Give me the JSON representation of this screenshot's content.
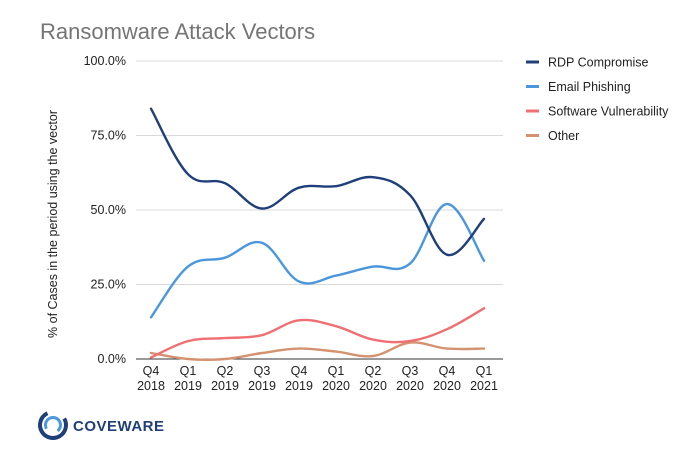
{
  "chart_data": {
    "type": "line",
    "title": "Ransomware Attack Vectors",
    "xlabel": "",
    "ylabel": "% of Cases in the period using the vector",
    "ylim": [
      0,
      100
    ],
    "y_ticks": [
      "0.0%",
      "25.0%",
      "50.0%",
      "75.0%",
      "100.0%"
    ],
    "y_tick_values": [
      0,
      25,
      50,
      75,
      100
    ],
    "categories": [
      [
        "Q4",
        "2018"
      ],
      [
        "Q1",
        "2019"
      ],
      [
        "Q2",
        "2019"
      ],
      [
        "Q3",
        "2019"
      ],
      [
        "Q4",
        "2019"
      ],
      [
        "Q1",
        "2020"
      ],
      [
        "Q2",
        "2020"
      ],
      [
        "Q3",
        "2020"
      ],
      [
        "Q4",
        "2020"
      ],
      [
        "Q1",
        "2021"
      ]
    ],
    "series": [
      {
        "name": "RDP Compromise",
        "color": "#1f3f7a",
        "values": [
          84,
          62,
          59,
          50.5,
          57.5,
          58,
          61,
          55,
          35,
          47
        ]
      },
      {
        "name": "Email Phishing",
        "color": "#4a97dd",
        "values": [
          14,
          31,
          34,
          39,
          26,
          28,
          31,
          32,
          52,
          33
        ]
      },
      {
        "name": "Software Vulnerability",
        "color": "#ef6f73",
        "values": [
          0.5,
          6,
          7,
          8,
          13,
          11,
          6.5,
          6,
          10,
          17
        ]
      },
      {
        "name": "Other",
        "color": "#d59270",
        "values": [
          2,
          0,
          0,
          2,
          3.5,
          2.5,
          1,
          5.5,
          3.5,
          3.5
        ]
      }
    ],
    "legend_position": "right",
    "grid": "horizontal"
  },
  "logo": {
    "text": "COVEWARE",
    "color": "#1f3f7a",
    "icon": "coveware-ring-icon"
  }
}
